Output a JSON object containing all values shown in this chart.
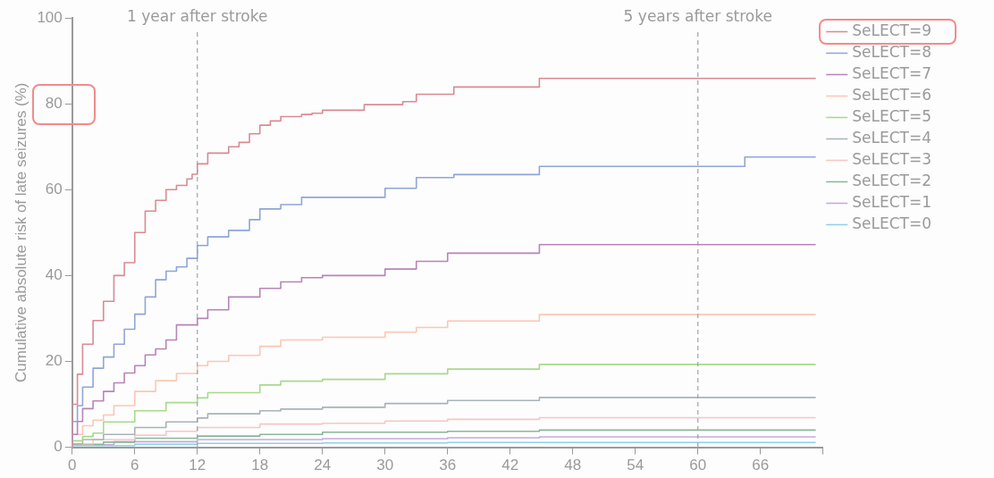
{
  "chart_data": {
    "type": "step",
    "ylabel": "Cumulative absolute risk of late seizures (%)",
    "xlim": [
      0,
      72
    ],
    "xticks": [
      0,
      6,
      12,
      18,
      24,
      30,
      36,
      42,
      48,
      54,
      60,
      66,
      {
        "value": 72,
        "label": null
      }
    ],
    "ylim": [
      0,
      100
    ],
    "yticks": [
      0,
      20,
      40,
      60,
      80,
      100
    ],
    "grid": false,
    "legend": "top right",
    "line_style": "solid",
    "marker": "none",
    "ref_lines": [
      {
        "axis": "x",
        "value": 12,
        "label": "1 year after stroke",
        "color": "#9aa4ab",
        "line_style": "dashed"
      },
      {
        "axis": "x",
        "value": 60,
        "label": "5 years after stroke",
        "color": "#9aa4ab",
        "line_style": "dashed"
      }
    ],
    "series": [
      {
        "name": "SeLECT=9",
        "color": "#d98a93",
        "x": [
          0,
          0.5,
          1,
          2,
          3,
          4,
          5,
          6,
          7,
          8,
          9,
          10,
          11,
          11.5,
          12,
          13,
          15,
          16,
          17,
          18,
          19,
          20,
          22,
          23,
          24,
          28,
          31.7,
          33,
          36.6,
          44.8,
          64.5,
          71.3
        ],
        "values": [
          0,
          10,
          17,
          24,
          29.5,
          34,
          40,
          43,
          50,
          55,
          57.5,
          60,
          61,
          62.5,
          63.6,
          66,
          68.5,
          70,
          71,
          73,
          75,
          76,
          77,
          77.5,
          77.8,
          78.5,
          79.8,
          80.5,
          82.2,
          83.9,
          85.9,
          85.9
        ]
      },
      {
        "name": "SeLECT=8",
        "color": "#8fa5d8",
        "x": [
          0,
          0.5,
          1,
          2,
          3,
          4,
          5,
          6,
          7,
          8,
          9,
          10,
          11,
          12,
          13,
          15,
          17,
          18,
          20,
          22,
          24,
          30,
          33,
          36.6,
          44.8,
          64.5,
          71.3
        ],
        "values": [
          0,
          6,
          9.7,
          14,
          18.4,
          21,
          24,
          27.5,
          31,
          35,
          39,
          41,
          42,
          44,
          47,
          49,
          50.5,
          53,
          55.5,
          56.5,
          58.2,
          58.2,
          60.3,
          62.8,
          63.5,
          65.4,
          67.6
        ]
      },
      {
        "name": "SeLECT=7",
        "color": "#b784b7",
        "x": [
          0,
          0.5,
          1,
          2,
          3,
          4,
          5,
          6,
          7,
          8,
          9,
          10,
          12,
          13,
          15,
          18,
          20,
          22,
          24,
          30,
          33,
          36,
          44.8,
          64.5,
          71.3
        ],
        "values": [
          0,
          3,
          6,
          9,
          10.8,
          13,
          15,
          17.3,
          19,
          21.5,
          22.9,
          25,
          28.5,
          30,
          32,
          35,
          37,
          38.5,
          39.5,
          40,
          41.5,
          43.3,
          45.2,
          47.2,
          47.2
        ]
      },
      {
        "name": "SeLECT=6",
        "color": "#fcc6b4",
        "x": [
          0,
          1,
          2,
          3,
          4,
          6,
          8,
          10,
          12,
          13,
          15,
          18,
          20,
          24,
          30,
          33,
          36,
          44.8,
          64.5,
          71.3
        ],
        "values": [
          0,
          3,
          5,
          6.3,
          7.5,
          9.7,
          13,
          15.5,
          17.2,
          19,
          20,
          21.4,
          23.5,
          25,
          25.6,
          26.8,
          27.9,
          29.4,
          30.9,
          30.9
        ]
      },
      {
        "name": "SeLECT=5",
        "color": "#a8d98c",
        "x": [
          0,
          1,
          2,
          3,
          6,
          9,
          12,
          13,
          18,
          20,
          24,
          30,
          36,
          44.8,
          64.5,
          71.3
        ],
        "values": [
          0,
          1.5,
          2.5,
          3.3,
          5.9,
          8.5,
          10.4,
          11.5,
          12.7,
          14.5,
          15.4,
          15.8,
          17.1,
          18.2,
          19.3,
          19.3
        ]
      },
      {
        "name": "SeLECT=4",
        "color": "#a8b4b8",
        "x": [
          0,
          1,
          3,
          6,
          9,
          12,
          13,
          18,
          20,
          24,
          30,
          36,
          44.8,
          64.5,
          71.3
        ],
        "values": [
          0,
          0.8,
          1.8,
          3,
          4.6,
          5.9,
          6.8,
          7.8,
          8.5,
          8.9,
          9.3,
          10.2,
          10.9,
          11.6,
          11.6
        ]
      },
      {
        "name": "SeLECT=3",
        "color": "#f7c6c6",
        "x": [
          0,
          2,
          6,
          9,
          12,
          18,
          24,
          30,
          36,
          44.8,
          64.5,
          71.3
        ],
        "values": [
          0,
          0.8,
          1.8,
          2.8,
          3.7,
          4.6,
          5.4,
          5.6,
          6.1,
          6.5,
          6.9,
          6.9
        ]
      },
      {
        "name": "SeLECT=2",
        "color": "#88b898",
        "x": [
          0,
          3,
          6,
          12,
          18,
          24,
          36,
          44.8,
          64.5,
          71.3
        ],
        "values": [
          0,
          0.7,
          1.2,
          2.1,
          2.6,
          3,
          3.5,
          3.7,
          4,
          4
        ]
      },
      {
        "name": "SeLECT=1",
        "color": "#c6a8e0",
        "x": [
          0,
          4,
          12,
          24,
          36,
          44.8,
          64.5,
          71.3
        ],
        "values": [
          0,
          0.6,
          1.3,
          1.8,
          2,
          2.2,
          2.4,
          2.4
        ]
      },
      {
        "name": "SeLECT=0",
        "color": "#8fd0e8",
        "x": [
          0,
          6,
          12,
          24,
          36,
          64.5,
          71.3
        ],
        "values": [
          0,
          0.4,
          0.7,
          0.9,
          1,
          1.1,
          1.1
        ]
      }
    ]
  }
}
